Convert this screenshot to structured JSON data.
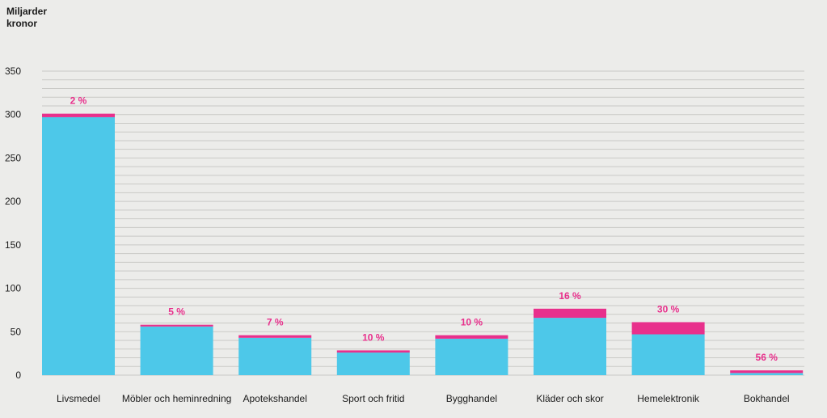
{
  "chart_data": {
    "type": "bar",
    "stacked": true,
    "ylabel_lines": [
      "Miljarder",
      "kronor"
    ],
    "yticks": [
      0,
      50,
      100,
      150,
      200,
      250,
      300,
      350
    ],
    "ylim": [
      0,
      350
    ],
    "grid": true,
    "categories": [
      "Livsmedel",
      "Möbler och heminredning",
      "Apotekshandel",
      "Sport och fritid",
      "Bygghandel",
      "Kläder och skor",
      "Hemelektronik",
      "Bokhandel"
    ],
    "series": [
      {
        "values": [
          297,
          56,
          43,
          26,
          42,
          66,
          47,
          2.5
        ],
        "color": "#4dc8e9"
      },
      {
        "values": [
          4,
          2,
          3,
          2.5,
          4,
          10.5,
          14,
          3
        ],
        "color": "#e8308c"
      }
    ],
    "data_labels": [
      "2 %",
      "5 %",
      "7 %",
      "10 %",
      "10 %",
      "16 %",
      "30 %",
      "56 %"
    ],
    "label_color": "#e8308c"
  }
}
